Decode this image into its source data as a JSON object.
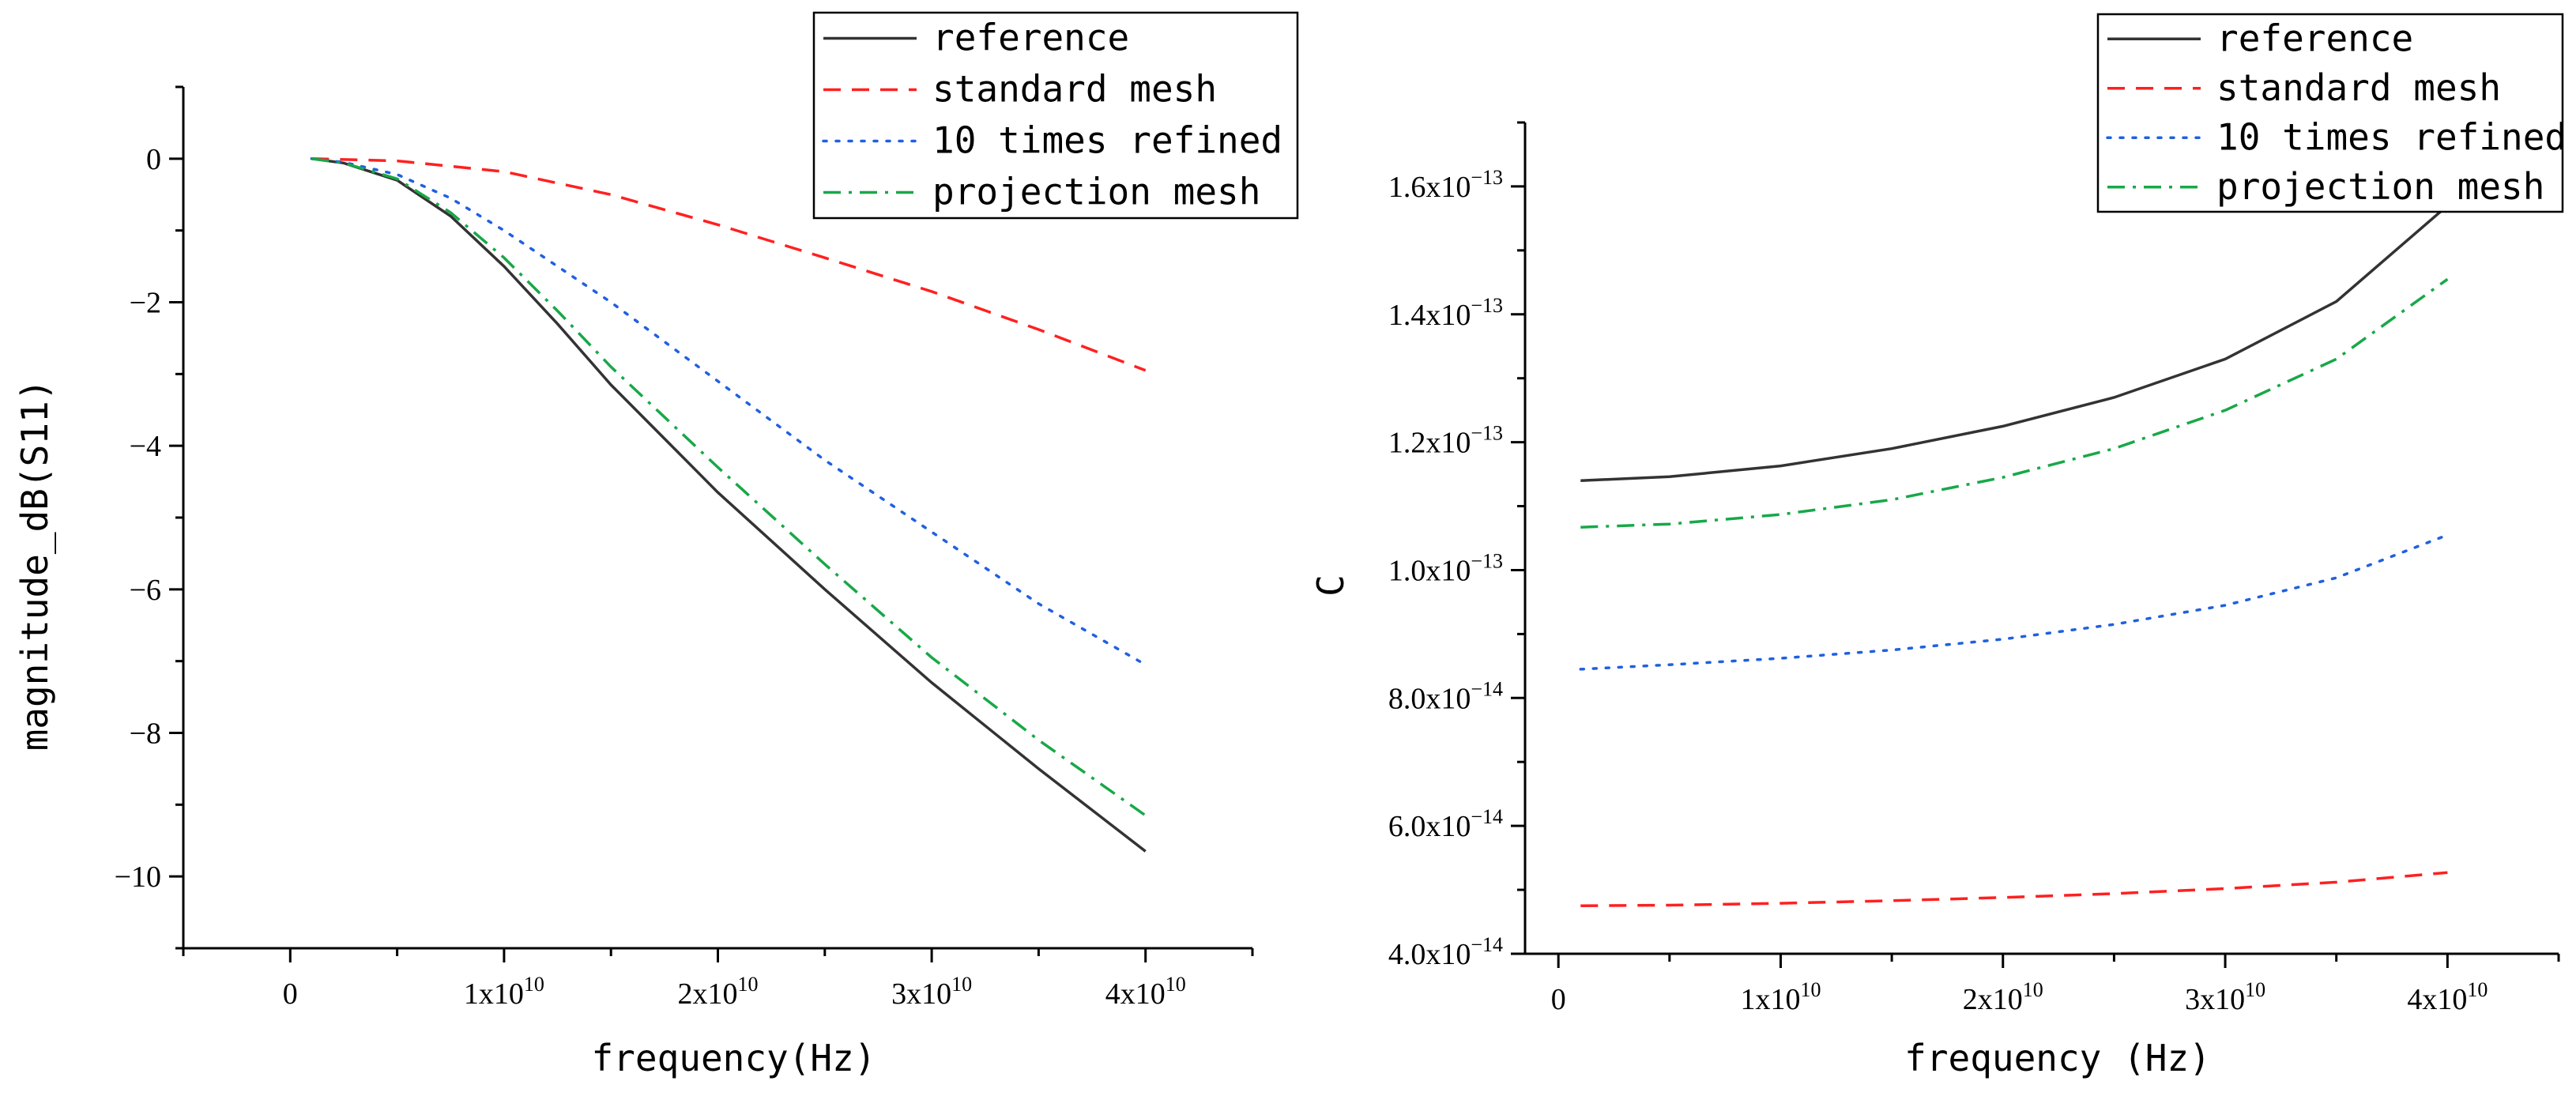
{
  "colors": {
    "reference": "#333333",
    "standard": "#ff2020",
    "refined": "#2060e0",
    "projection": "#18a848"
  },
  "chart_data": [
    {
      "type": "line",
      "xlabel": "frequency(Hz)",
      "ylabel": "magnitude_dB(S11)",
      "xlim": [
        -5000000000.0,
        45000000000.0
      ],
      "ylim": [
        -11,
        1
      ],
      "xticks": [
        {
          "value": 0,
          "base": "0",
          "exp": ""
        },
        {
          "value": 10000000000.0,
          "base": "1x10",
          "exp": "10"
        },
        {
          "value": 20000000000.0,
          "base": "2x10",
          "exp": "10"
        },
        {
          "value": 30000000000.0,
          "base": "3x10",
          "exp": "10"
        },
        {
          "value": 40000000000.0,
          "base": "4x10",
          "exp": "10"
        }
      ],
      "yticks": [
        {
          "value": 0,
          "base": "0",
          "exp": ""
        },
        {
          "value": -2,
          "base": "−2",
          "exp": ""
        },
        {
          "value": -4,
          "base": "−4",
          "exp": ""
        },
        {
          "value": -6,
          "base": "−6",
          "exp": ""
        },
        {
          "value": -8,
          "base": "−8",
          "exp": ""
        },
        {
          "value": -10,
          "base": "−10",
          "exp": ""
        }
      ],
      "legend_position": "top-right",
      "series": [
        {
          "name": "reference",
          "style": "solid",
          "color_key": "reference",
          "x": [
            1000000000.0,
            2500000000.0,
            5000000000.0,
            7500000000.0,
            10000000000.0,
            12500000000.0,
            15000000000.0,
            17500000000.0,
            20000000000.0,
            25000000000.0,
            30000000000.0,
            35000000000.0,
            40000000000.0
          ],
          "y": [
            0,
            -0.06,
            -0.3,
            -0.8,
            -1.5,
            -2.3,
            -3.15,
            -3.9,
            -4.65,
            -6.0,
            -7.3,
            -8.5,
            -9.65
          ]
        },
        {
          "name": "standard mesh",
          "style": "dashed",
          "color_key": "standard",
          "x": [
            1000000000.0,
            5000000000.0,
            10000000000.0,
            15000000000.0,
            20000000000.0,
            25000000000.0,
            30000000000.0,
            35000000000.0,
            40000000000.0
          ],
          "y": [
            0,
            -0.03,
            -0.18,
            -0.5,
            -0.92,
            -1.38,
            -1.85,
            -2.38,
            -2.95
          ]
        },
        {
          "name": "10 times refined",
          "style": "dotted",
          "color_key": "refined",
          "x": [
            1000000000.0,
            2500000000.0,
            5000000000.0,
            7500000000.0,
            10000000000.0,
            15000000000.0,
            20000000000.0,
            25000000000.0,
            30000000000.0,
            35000000000.0,
            40000000000.0
          ],
          "y": [
            0,
            -0.05,
            -0.22,
            -0.55,
            -1.0,
            -2.0,
            -3.1,
            -4.2,
            -5.2,
            -6.2,
            -7.05
          ]
        },
        {
          "name": "projection mesh",
          "style": "dashdot",
          "color_key": "projection",
          "x": [
            1000000000.0,
            2500000000.0,
            5000000000.0,
            7500000000.0,
            10000000000.0,
            12500000000.0,
            15000000000.0,
            17500000000.0,
            20000000000.0,
            25000000000.0,
            30000000000.0,
            35000000000.0,
            40000000000.0
          ],
          "y": [
            0,
            -0.06,
            -0.28,
            -0.75,
            -1.38,
            -2.12,
            -2.9,
            -3.6,
            -4.3,
            -5.65,
            -6.95,
            -8.1,
            -9.15
          ]
        }
      ]
    },
    {
      "type": "line",
      "xlabel": "frequency (Hz)",
      "ylabel": "C",
      "xlim": [
        -1500000000.0,
        45000000000.0
      ],
      "ylim": [
        4e-14,
        1.7e-13
      ],
      "xticks": [
        {
          "value": 0,
          "base": "0",
          "exp": ""
        },
        {
          "value": 10000000000.0,
          "base": "1x10",
          "exp": "10"
        },
        {
          "value": 20000000000.0,
          "base": "2x10",
          "exp": "10"
        },
        {
          "value": 30000000000.0,
          "base": "3x10",
          "exp": "10"
        },
        {
          "value": 40000000000.0,
          "base": "4x10",
          "exp": "10"
        }
      ],
      "yticks": [
        {
          "value": 4e-14,
          "base": "4.0x10",
          "exp": "−14"
        },
        {
          "value": 6e-14,
          "base": "6.0x10",
          "exp": "−14"
        },
        {
          "value": 8e-14,
          "base": "8.0x10",
          "exp": "−14"
        },
        {
          "value": 1e-13,
          "base": "1.0x10",
          "exp": "−13"
        },
        {
          "value": 1.2e-13,
          "base": "1.2x10",
          "exp": "−13"
        },
        {
          "value": 1.4e-13,
          "base": "1.4x10",
          "exp": "−13"
        },
        {
          "value": 1.6e-13,
          "base": "1.6x10",
          "exp": "−13"
        }
      ],
      "legend_position": "top-right",
      "series": [
        {
          "name": "reference",
          "style": "solid",
          "color_key": "reference",
          "x": [
            1000000000.0,
            5000000000.0,
            10000000000.0,
            15000000000.0,
            20000000000.0,
            25000000000.0,
            30000000000.0,
            35000000000.0,
            40000000000.0
          ],
          "y": [
            1.14e-13,
            1.146e-13,
            1.163e-13,
            1.19e-13,
            1.225e-13,
            1.27e-13,
            1.33e-13,
            1.42e-13,
            1.57e-13
          ]
        },
        {
          "name": "standard mesh",
          "style": "dashed",
          "color_key": "standard",
          "x": [
            1000000000.0,
            5000000000.0,
            10000000000.0,
            15000000000.0,
            20000000000.0,
            25000000000.0,
            30000000000.0,
            35000000000.0,
            40000000000.0
          ],
          "y": [
            4.75e-14,
            4.76e-14,
            4.79e-14,
            4.83e-14,
            4.88e-14,
            4.94e-14,
            5.02e-14,
            5.12e-14,
            5.27e-14
          ]
        },
        {
          "name": "10 times refined",
          "style": "dotted",
          "color_key": "refined",
          "x": [
            1000000000.0,
            5000000000.0,
            10000000000.0,
            15000000000.0,
            20000000000.0,
            25000000000.0,
            30000000000.0,
            35000000000.0,
            40000000000.0
          ],
          "y": [
            8.45e-14,
            8.52e-14,
            8.62e-14,
            8.75e-14,
            8.92e-14,
            9.15e-14,
            9.45e-14,
            9.88e-14,
            1.055e-13
          ]
        },
        {
          "name": "projection mesh",
          "style": "dashdot",
          "color_key": "projection",
          "x": [
            1000000000.0,
            5000000000.0,
            10000000000.0,
            15000000000.0,
            20000000000.0,
            25000000000.0,
            30000000000.0,
            35000000000.0,
            40000000000.0
          ],
          "y": [
            1.067e-13,
            1.072e-13,
            1.087e-13,
            1.11e-13,
            1.145e-13,
            1.19e-13,
            1.25e-13,
            1.33e-13,
            1.455e-13
          ]
        }
      ]
    }
  ]
}
